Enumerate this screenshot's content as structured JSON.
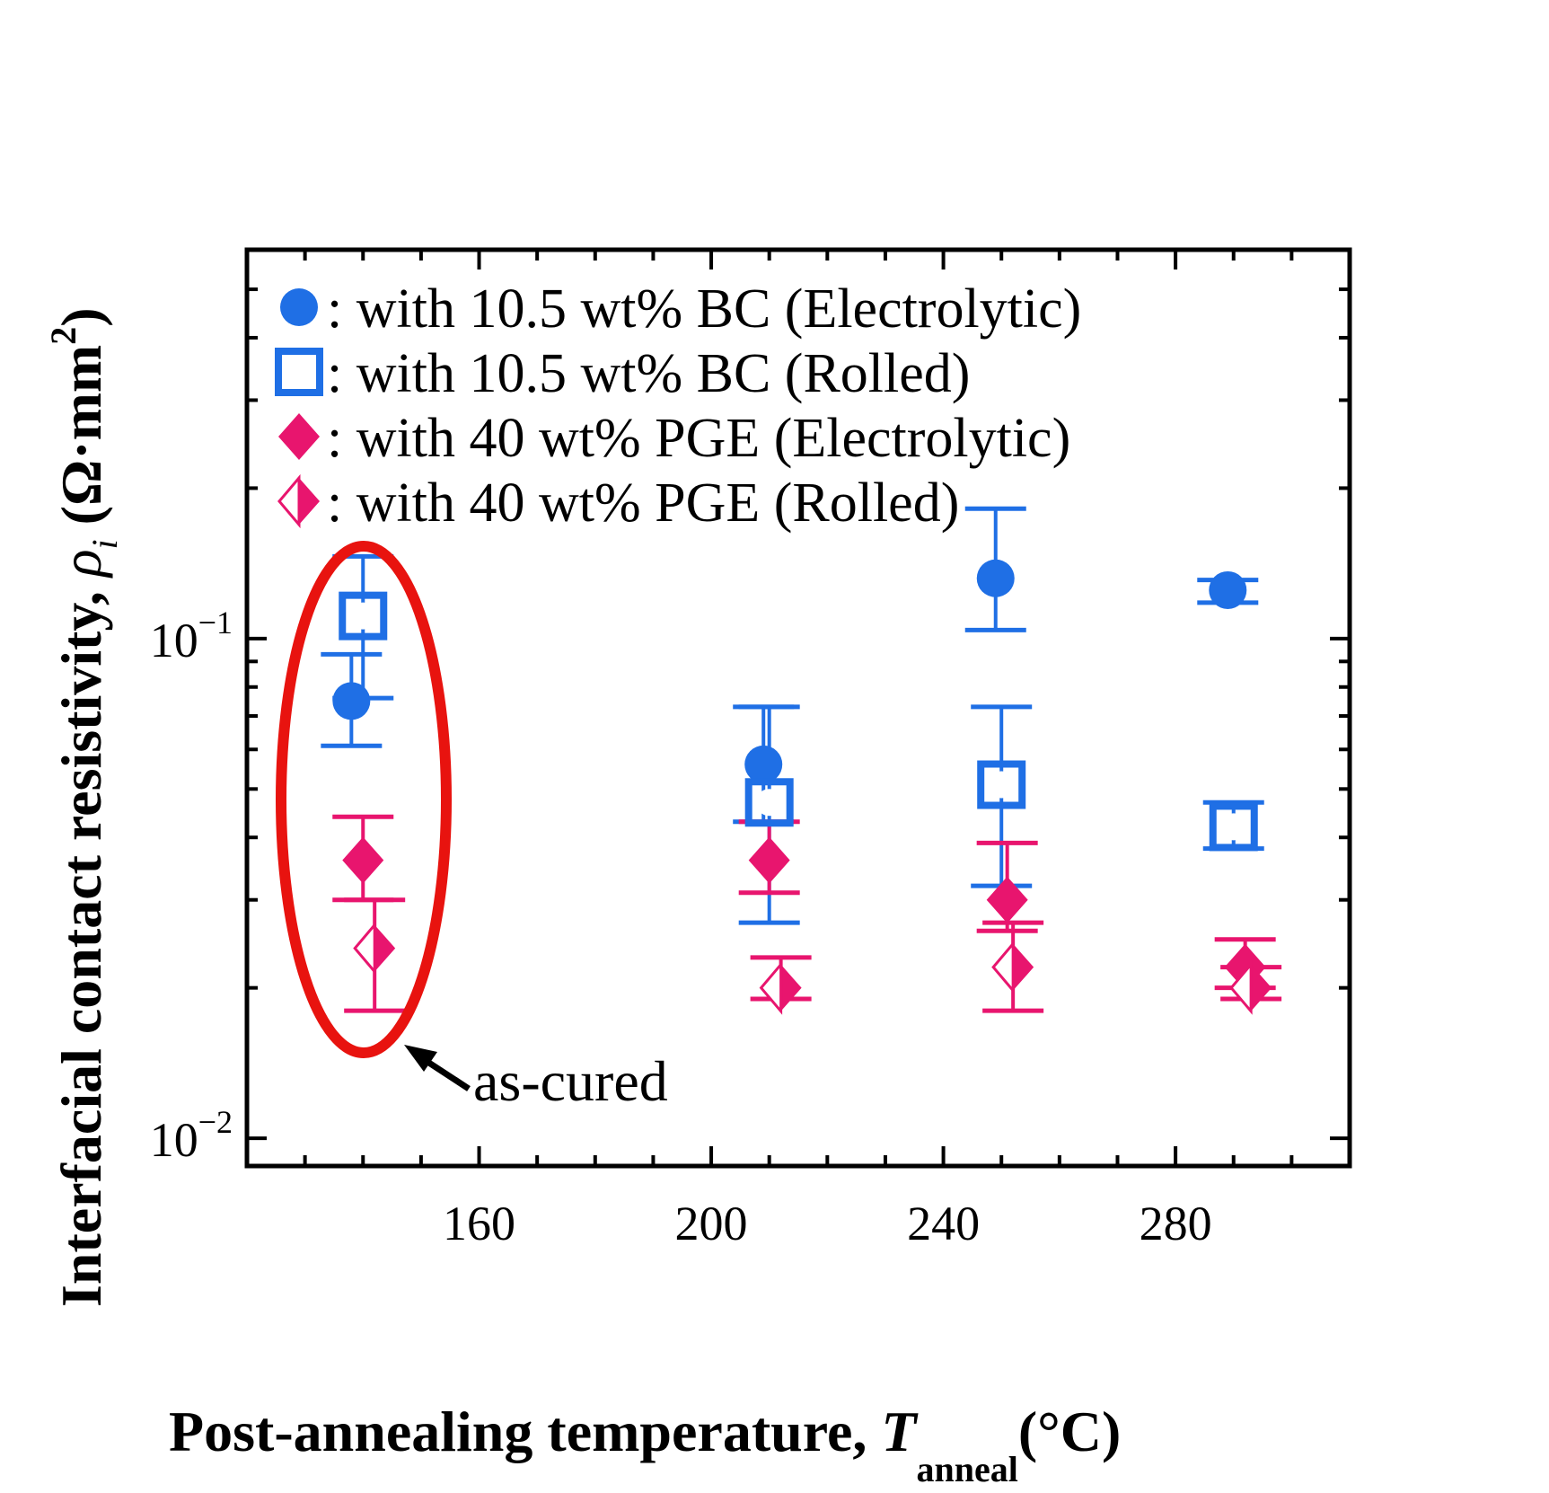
{
  "chart_data": {
    "type": "scatter",
    "title": "",
    "xlabel": {
      "main": "Post-annealing temperature, ",
      "symbol": "T",
      "subscript": "anneal",
      "unit": "(°C)"
    },
    "ylabel": {
      "main": "Interfacial contact resistivity, ",
      "symbol": "ρ",
      "subscript": "i",
      "unit_open": " (Ω·mm",
      "unit_sup": "2",
      "unit_close": ")"
    },
    "xlim": [
      120,
      310
    ],
    "ylim": [
      0.0088,
      0.6
    ],
    "yscale": "log",
    "x_ticks": [
      {
        "value": 160,
        "label": "160"
      },
      {
        "value": 200,
        "label": "200"
      },
      {
        "value": 240,
        "label": "240"
      },
      {
        "value": 280,
        "label": "280"
      }
    ],
    "y_ticks": [
      {
        "value": 0.1,
        "base": "10",
        "exp": "−1"
      },
      {
        "value": 0.01,
        "base": "10",
        "exp": "−2"
      }
    ],
    "series": [
      {
        "name": "with 10.5 wt% BC (Electrolytic)",
        "legend_label": ": with 10.5 wt% BC (Electrolytic)",
        "marker": "filled-circle",
        "color": "#1f6fe5",
        "points": [
          {
            "x": 138,
            "y": 0.075,
            "ylow": 0.061,
            "yhigh": 0.093
          },
          {
            "x": 209,
            "y": 0.056,
            "ylow": 0.043,
            "yhigh": 0.073
          },
          {
            "x": 249,
            "y": 0.132,
            "ylow": 0.104,
            "yhigh": 0.182
          },
          {
            "x": 289,
            "y": 0.125,
            "ylow": 0.118,
            "yhigh": 0.131
          }
        ]
      },
      {
        "name": "with 10.5 wt% BC (Rolled)",
        "legend_label": ": with 10.5 wt% BC (Rolled)",
        "marker": "square-with-circle",
        "color": "#1f6fe5",
        "points": [
          {
            "x": 140,
            "y": 0.111,
            "ylow": 0.076,
            "yhigh": 0.146
          },
          {
            "x": 210,
            "y": 0.047,
            "ylow": 0.027,
            "yhigh": 0.073
          },
          {
            "x": 250,
            "y": 0.051,
            "ylow": 0.032,
            "yhigh": 0.073
          },
          {
            "x": 290,
            "y": 0.042,
            "ylow": 0.038,
            "yhigh": 0.047
          }
        ]
      },
      {
        "name": "with 40 wt% PGE (Electrolytic)",
        "legend_label": ": with 40 wt% PGE (Electrolytic)",
        "marker": "filled-diamond",
        "color": "#e8156e",
        "points": [
          {
            "x": 140,
            "y": 0.036,
            "ylow": 0.03,
            "yhigh": 0.044
          },
          {
            "x": 210,
            "y": 0.036,
            "ylow": 0.031,
            "yhigh": 0.043
          },
          {
            "x": 251,
            "y": 0.03,
            "ylow": 0.026,
            "yhigh": 0.039
          },
          {
            "x": 292,
            "y": 0.022,
            "ylow": 0.02,
            "yhigh": 0.025
          }
        ]
      },
      {
        "name": "with 40 wt% PGE (Rolled)",
        "legend_label": ": with 40 wt% PGE (Rolled)",
        "marker": "half-diamond",
        "color": "#e8156e",
        "points": [
          {
            "x": 142,
            "y": 0.024,
            "ylow": 0.018,
            "yhigh": 0.03
          },
          {
            "x": 212,
            "y": 0.02,
            "ylow": 0.019,
            "yhigh": 0.023
          },
          {
            "x": 252,
            "y": 0.022,
            "ylow": 0.018,
            "yhigh": 0.027
          },
          {
            "x": 293,
            "y": 0.02,
            "ylow": 0.019,
            "yhigh": 0.022
          }
        ]
      }
    ],
    "annotations": [
      {
        "text": "as-cured",
        "target": "as-cured points at ~140 °C",
        "highlight_color": "#e8130f"
      }
    ]
  }
}
